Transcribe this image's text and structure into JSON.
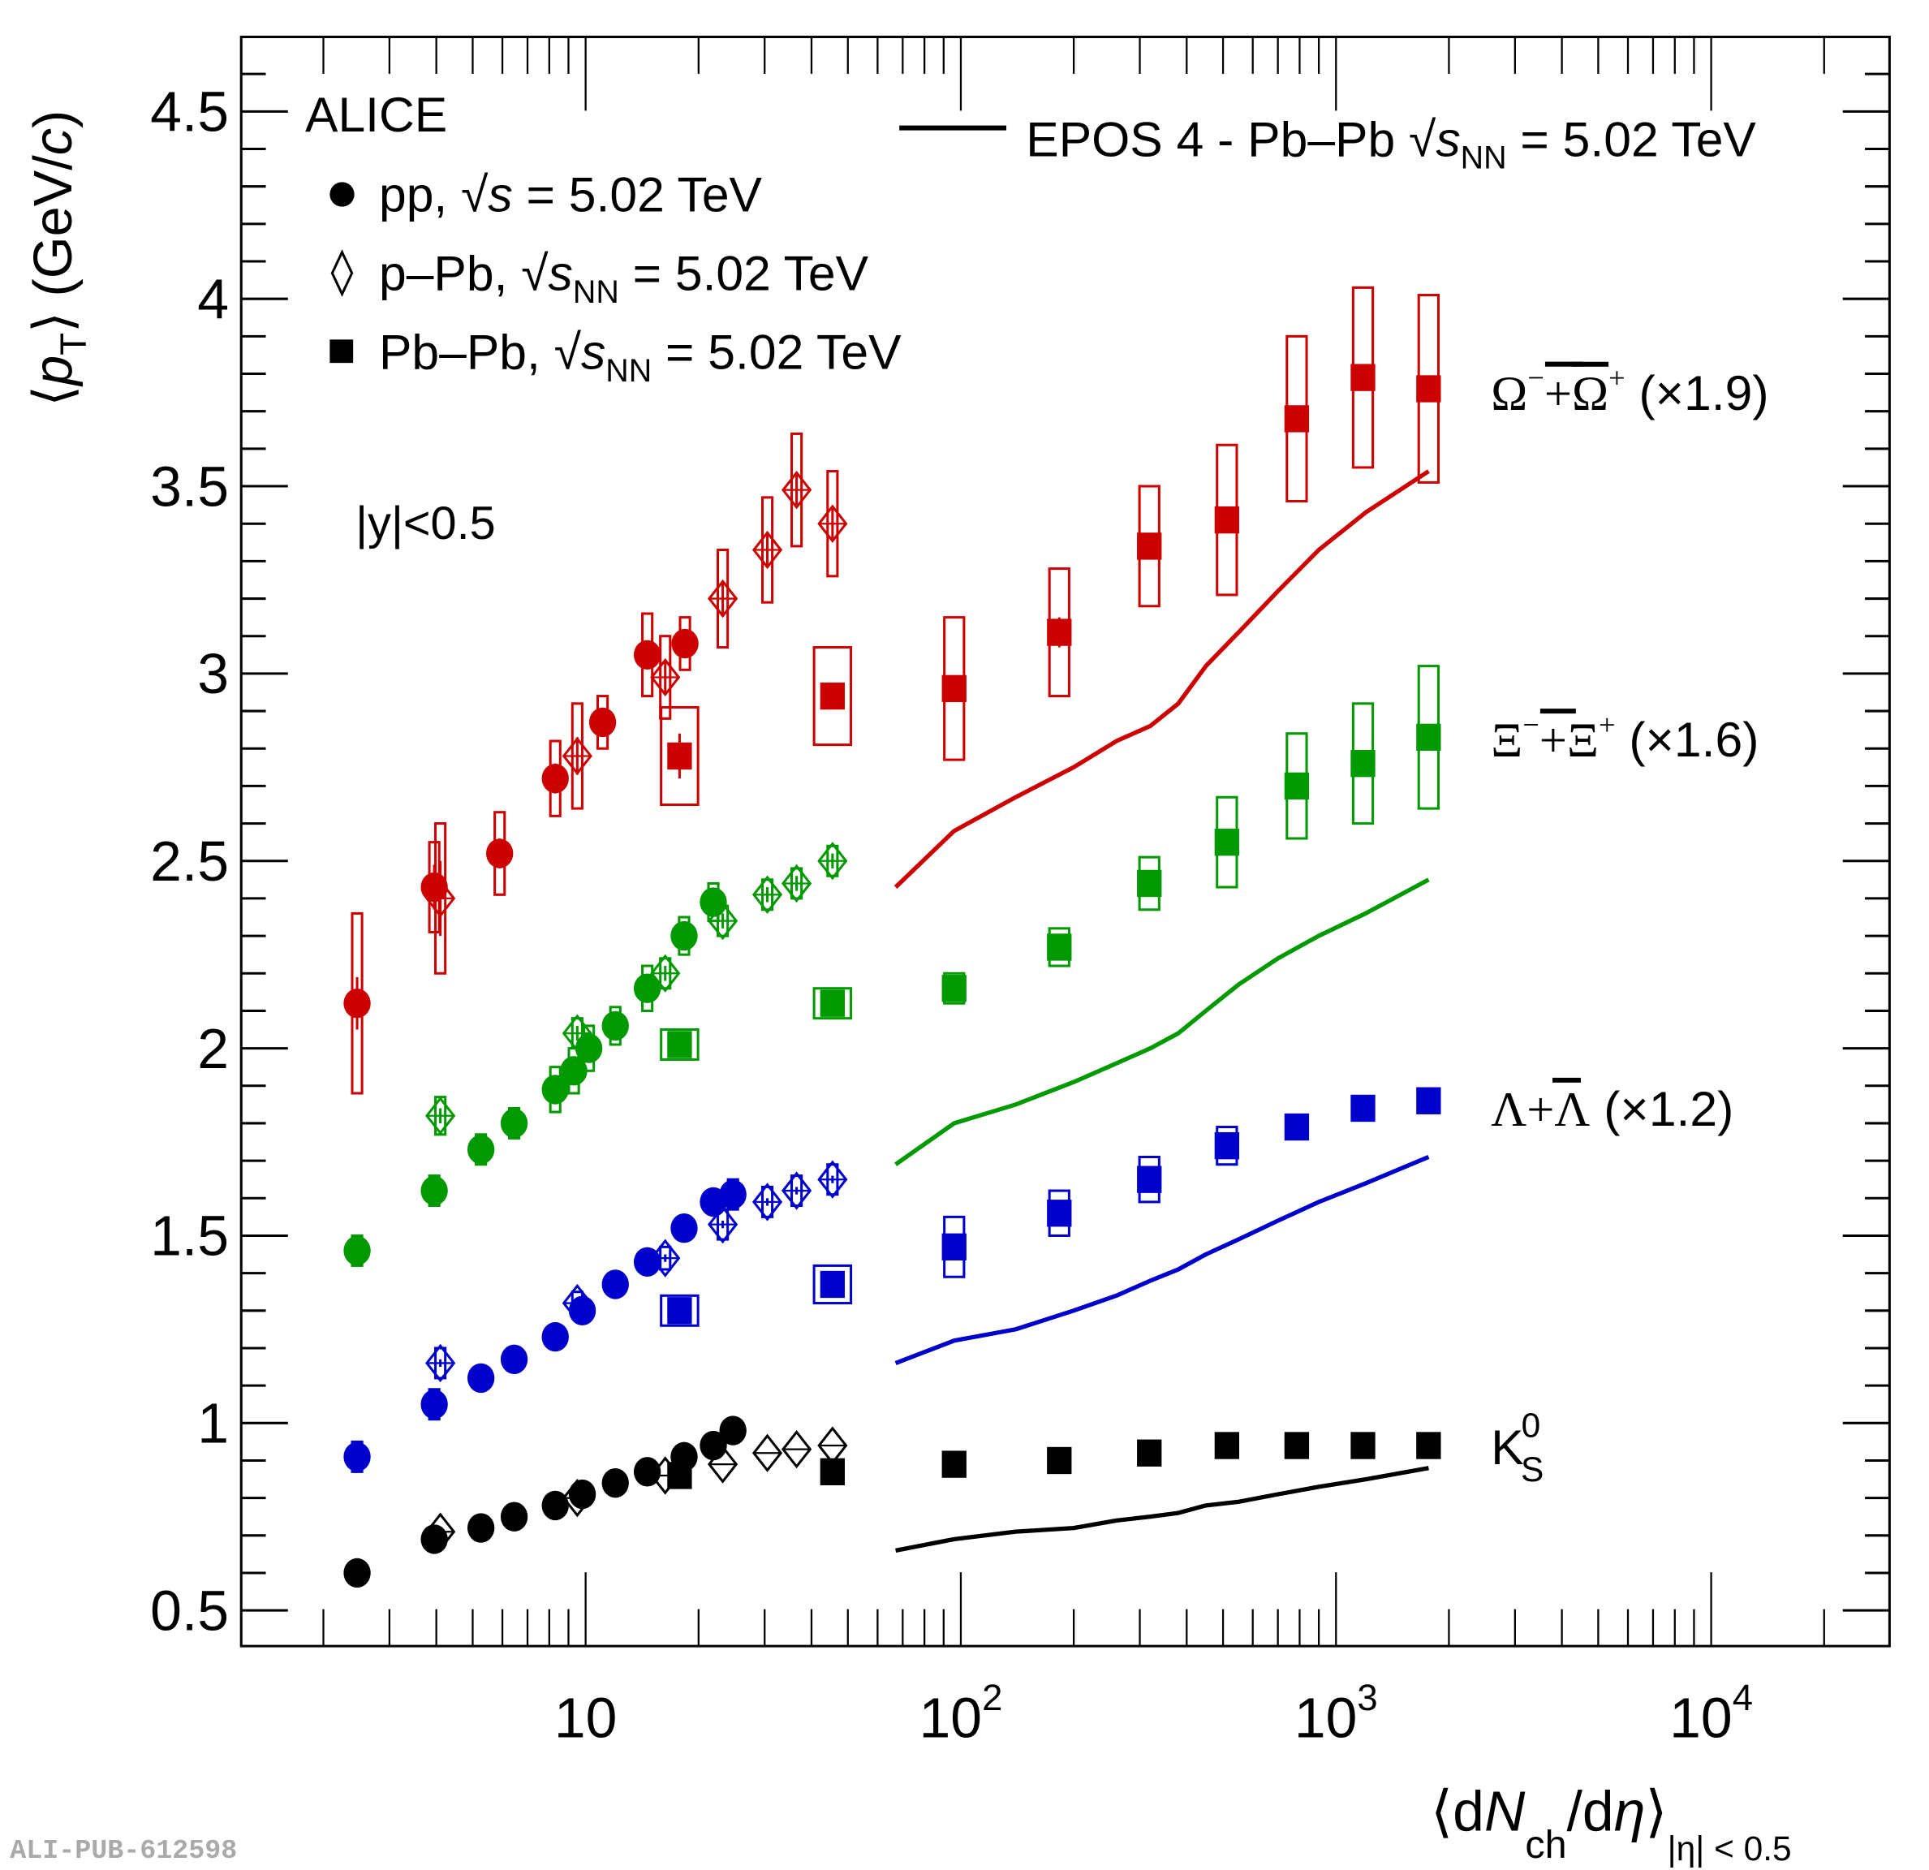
{
  "chart_data": {
    "type": "scatter",
    "experiment_label": "ALICE",
    "rapidity_label": "|y|<0.5",
    "xlabel": "⟨dN_ch/dη⟩_|η|<0.5",
    "xlabel_parts": {
      "main1": "⟨d",
      "N": "N",
      "sub_ch": "ch",
      "main2": "/d",
      "eta": "η",
      "close": "⟩",
      "sub_range": "|η| < 0.5"
    },
    "ylabel_parts": {
      "open": "⟨",
      "p": "p",
      "sub_T": "T",
      "close": "⟩ (GeV/",
      "c": "c",
      "end": ")"
    },
    "xscale": "log",
    "xlim": [
      1.5,
      25000
    ],
    "ylim": [
      0.4,
      4.7
    ],
    "x_ticks": [
      {
        "value": 10,
        "base": "10",
        "exp": ""
      },
      {
        "value": 100,
        "base": "10",
        "exp": "2"
      },
      {
        "value": 1000,
        "base": "10",
        "exp": "3"
      },
      {
        "value": 10000,
        "base": "10",
        "exp": "4"
      }
    ],
    "y_ticks": [
      0.5,
      1,
      1.5,
      2,
      2.5,
      3,
      3.5,
      4,
      4.5
    ],
    "y_tick_labels": [
      "0.5",
      "1",
      "1.5",
      "2",
      "2.5",
      "3",
      "3.5",
      "4",
      "4.5"
    ],
    "watermark": "ALI-PUB-612598",
    "legend": {
      "placement": "top-left",
      "entries": [
        {
          "marker": "circle",
          "label_main": "pp, ",
          "sqrt": "√",
          "s": "s",
          "sub": "",
          "rest": " = 5.02 TeV"
        },
        {
          "marker": "open-diamond",
          "label_main": "p–Pb, ",
          "sqrt": "√",
          "s": "s",
          "sub": "NN",
          "rest": " = 5.02 TeV"
        },
        {
          "marker": "square",
          "label_main": "Pb–Pb, ",
          "sqrt": "√",
          "s": "s",
          "sub": "NN",
          "rest": " = 5.02 TeV"
        }
      ],
      "model": {
        "marker": "line",
        "label_main": "EPOS 4 - Pb–Pb ",
        "sqrt": "√",
        "s": "s",
        "sub": "NN",
        "rest": " = 5.02 TeV",
        "placement": "top-right"
      }
    },
    "species_labels": [
      {
        "id": "omega",
        "text_a": "Ω",
        "sup_a": "−",
        "plus": "+",
        "text_b": "Ω",
        "sup_b": "+",
        "scale": " (×1.9)",
        "anchor_y": 3.75
      },
      {
        "id": "xi",
        "text_a": "Ξ",
        "sup_a": "−",
        "plus": "+",
        "text_b": "Ξ",
        "sup_b": "+",
        "scale": " (×1.6)",
        "anchor_y": 2.83
      },
      {
        "id": "lambda",
        "text_a": "Λ",
        "sup_a": "",
        "plus": "+",
        "text_b": "Λ",
        "sup_b": "",
        "scale": " (×1.2)",
        "anchor_y": 1.85
      },
      {
        "id": "k0s",
        "text_a": "K",
        "sup_a": "0",
        "sub_a": "S",
        "plus": "",
        "text_b": "",
        "sup_b": "",
        "scale": "",
        "anchor_y": 0.92
      }
    ],
    "series": [
      {
        "name": "Omega pp",
        "species": "omega",
        "system": "pp",
        "marker": "circle",
        "color": "#cc0000",
        "points": [
          {
            "x": 2.46,
            "y": 2.12,
            "stat": 0.07,
            "sys": 0.24
          },
          {
            "x": 3.95,
            "y": 2.43,
            "stat": 0.06,
            "sys": 0.12
          },
          {
            "x": 5.9,
            "y": 2.52,
            "stat": 0.04,
            "sys": 0.11
          },
          {
            "x": 8.3,
            "y": 2.72,
            "stat": 0.04,
            "sys": 0.1
          },
          {
            "x": 11.1,
            "y": 2.87,
            "stat": 0.03,
            "sys": 0.07
          },
          {
            "x": 14.6,
            "y": 3.05,
            "stat": 0.03,
            "sys": 0.11
          },
          {
            "x": 18.4,
            "y": 3.08,
            "stat": 0.03,
            "sys": 0.07
          }
        ]
      },
      {
        "name": "Omega p-Pb",
        "species": "omega",
        "system": "p-Pb",
        "marker": "open-diamond",
        "color": "#cc0000",
        "points": [
          {
            "x": 4.1,
            "y": 2.4,
            "stat": 0.1,
            "sys": 0.2
          },
          {
            "x": 9.5,
            "y": 2.78,
            "stat": 0.05,
            "sys": 0.14
          },
          {
            "x": 16.3,
            "y": 2.99,
            "stat": 0.04,
            "sys": 0.11
          },
          {
            "x": 23.2,
            "y": 3.2,
            "stat": 0.04,
            "sys": 0.13
          },
          {
            "x": 30.5,
            "y": 3.33,
            "stat": 0.04,
            "sys": 0.14
          },
          {
            "x": 36.5,
            "y": 3.49,
            "stat": 0.04,
            "sys": 0.15
          },
          {
            "x": 45.5,
            "y": 3.4,
            "stat": 0.04,
            "sys": 0.14
          }
        ]
      },
      {
        "name": "Omega Pb-Pb",
        "species": "omega",
        "system": "Pb-Pb",
        "marker": "square",
        "color": "#cc0000",
        "points": [
          {
            "x": 17.8,
            "y": 2.78,
            "stat": 0.06,
            "sys": 0.13,
            "wide": true
          },
          {
            "x": 45.5,
            "y": 2.94,
            "stat": 0.02,
            "sys": 0.13,
            "wide": true
          },
          {
            "x": 96,
            "y": 2.96,
            "stat": 0.02,
            "sys": 0.19
          },
          {
            "x": 183,
            "y": 3.11,
            "stat": 0.04,
            "sys": 0.17
          },
          {
            "x": 318,
            "y": 3.34,
            "stat": 0.02,
            "sys": 0.16
          },
          {
            "x": 512,
            "y": 3.41,
            "stat": 0.03,
            "sys": 0.2
          },
          {
            "x": 786,
            "y": 3.68,
            "stat": 0.03,
            "sys": 0.22
          },
          {
            "x": 1180,
            "y": 3.79,
            "stat": 0.03,
            "sys": 0.24
          },
          {
            "x": 1765,
            "y": 3.76,
            "stat": 0.03,
            "sys": 0.25
          }
        ]
      },
      {
        "name": "Xi pp",
        "species": "xi",
        "system": "pp",
        "marker": "circle",
        "color": "#009900",
        "points": [
          {
            "x": 2.46,
            "y": 1.46,
            "stat": 0.01,
            "sys": 0.04
          },
          {
            "x": 3.95,
            "y": 1.62,
            "stat": 0.01,
            "sys": 0.04
          },
          {
            "x": 5.26,
            "y": 1.73,
            "stat": 0.01,
            "sys": 0.04
          },
          {
            "x": 6.45,
            "y": 1.8,
            "stat": 0.01,
            "sys": 0.04
          },
          {
            "x": 8.3,
            "y": 1.89,
            "stat": 0.01,
            "sys": 0.06
          },
          {
            "x": 9.3,
            "y": 1.94,
            "stat": 0.01,
            "sys": 0.06
          },
          {
            "x": 10.2,
            "y": 2.0,
            "stat": 0.01,
            "sys": 0.06
          },
          {
            "x": 12.0,
            "y": 2.06,
            "stat": 0.01,
            "sys": 0.05
          },
          {
            "x": 14.6,
            "y": 2.16,
            "stat": 0.01,
            "sys": 0.06
          },
          {
            "x": 18.3,
            "y": 2.3,
            "stat": 0.01,
            "sys": 0.05
          },
          {
            "x": 21.9,
            "y": 2.39,
            "stat": 0.01,
            "sys": 0.05
          }
        ]
      },
      {
        "name": "Xi p-Pb",
        "species": "xi",
        "system": "p-Pb",
        "marker": "open-diamond",
        "color": "#009900",
        "points": [
          {
            "x": 4.1,
            "y": 1.82,
            "stat": 0.02,
            "sys": 0.05
          },
          {
            "x": 9.5,
            "y": 2.04,
            "stat": 0.02,
            "sys": 0.04
          },
          {
            "x": 16.3,
            "y": 2.2,
            "stat": 0.02,
            "sys": 0.04
          },
          {
            "x": 23.2,
            "y": 2.34,
            "stat": 0.02,
            "sys": 0.04
          },
          {
            "x": 30.5,
            "y": 2.41,
            "stat": 0.02,
            "sys": 0.04
          },
          {
            "x": 36.5,
            "y": 2.44,
            "stat": 0.02,
            "sys": 0.04
          },
          {
            "x": 45.5,
            "y": 2.5,
            "stat": 0.02,
            "sys": 0.04
          }
        ]
      },
      {
        "name": "Xi Pb-Pb",
        "species": "xi",
        "system": "Pb-Pb",
        "marker": "square",
        "color": "#009900",
        "points": [
          {
            "x": 17.8,
            "y": 2.01,
            "stat": 0.01,
            "sys": 0.04,
            "wide": true
          },
          {
            "x": 45.5,
            "y": 2.12,
            "stat": 0.01,
            "sys": 0.04,
            "wide": true
          },
          {
            "x": 96,
            "y": 2.16,
            "stat": 0.01,
            "sys": 0.04
          },
          {
            "x": 183,
            "y": 2.27,
            "stat": 0.01,
            "sys": 0.05
          },
          {
            "x": 318,
            "y": 2.44,
            "stat": 0.01,
            "sys": 0.07
          },
          {
            "x": 512,
            "y": 2.55,
            "stat": 0.01,
            "sys": 0.12
          },
          {
            "x": 786,
            "y": 2.7,
            "stat": 0.01,
            "sys": 0.14
          },
          {
            "x": 1180,
            "y": 2.76,
            "stat": 0.01,
            "sys": 0.16
          },
          {
            "x": 1765,
            "y": 2.83,
            "stat": 0.01,
            "sys": 0.19
          }
        ]
      },
      {
        "name": "Lambda pp",
        "species": "lambda",
        "system": "pp",
        "marker": "circle",
        "color": "#0000cc",
        "points": [
          {
            "x": 2.46,
            "y": 0.91,
            "stat": 0.005,
            "sys": 0.04
          },
          {
            "x": 3.95,
            "y": 1.05,
            "stat": 0.005,
            "sys": 0.04
          },
          {
            "x": 5.26,
            "y": 1.12,
            "stat": 0.005,
            "sys": 0.03
          },
          {
            "x": 6.45,
            "y": 1.17,
            "stat": 0.005,
            "sys": 0.03
          },
          {
            "x": 8.3,
            "y": 1.23,
            "stat": 0.005,
            "sys": 0.03
          },
          {
            "x": 9.8,
            "y": 1.3,
            "stat": 0.005,
            "sys": 0.03
          },
          {
            "x": 12.0,
            "y": 1.37,
            "stat": 0.005,
            "sys": 0.03
          },
          {
            "x": 14.6,
            "y": 1.43,
            "stat": 0.005,
            "sys": 0.03
          },
          {
            "x": 18.3,
            "y": 1.52,
            "stat": 0.005,
            "sys": 0.03
          },
          {
            "x": 21.9,
            "y": 1.59,
            "stat": 0.005,
            "sys": 0.03
          },
          {
            "x": 24.7,
            "y": 1.61,
            "stat": 0.005,
            "sys": 0.04
          }
        ]
      },
      {
        "name": "Lambda p-Pb",
        "species": "lambda",
        "system": "p-Pb",
        "marker": "open-diamond",
        "color": "#0000cc",
        "points": [
          {
            "x": 4.1,
            "y": 1.16,
            "stat": 0.01,
            "sys": 0.04
          },
          {
            "x": 9.5,
            "y": 1.32,
            "stat": 0.01,
            "sys": 0.03
          },
          {
            "x": 16.3,
            "y": 1.44,
            "stat": 0.01,
            "sys": 0.03
          },
          {
            "x": 23.2,
            "y": 1.53,
            "stat": 0.01,
            "sys": 0.04
          },
          {
            "x": 30.5,
            "y": 1.59,
            "stat": 0.01,
            "sys": 0.04
          },
          {
            "x": 36.5,
            "y": 1.62,
            "stat": 0.01,
            "sys": 0.04
          },
          {
            "x": 45.5,
            "y": 1.65,
            "stat": 0.01,
            "sys": 0.04
          }
        ]
      },
      {
        "name": "Lambda Pb-Pb",
        "species": "lambda",
        "system": "Pb-Pb",
        "marker": "square",
        "color": "#0000cc",
        "points": [
          {
            "x": 17.8,
            "y": 1.3,
            "stat": 0.005,
            "sys": 0.04,
            "wide": true
          },
          {
            "x": 45.5,
            "y": 1.37,
            "stat": 0.005,
            "sys": 0.05,
            "wide": true
          },
          {
            "x": 96,
            "y": 1.47,
            "stat": 0.005,
            "sys": 0.08
          },
          {
            "x": 183,
            "y": 1.56,
            "stat": 0.005,
            "sys": 0.06
          },
          {
            "x": 318,
            "y": 1.65,
            "stat": 0.005,
            "sys": 0.06
          },
          {
            "x": 512,
            "y": 1.74,
            "stat": 0.005,
            "sys": 0.05
          },
          {
            "x": 786,
            "y": 1.79,
            "stat": 0.005,
            "sys": 0.03
          },
          {
            "x": 1180,
            "y": 1.84,
            "stat": 0.005,
            "sys": 0.03
          },
          {
            "x": 1765,
            "y": 1.86,
            "stat": 0.005,
            "sys": 0.03
          }
        ]
      },
      {
        "name": "K0S pp",
        "species": "k0s",
        "system": "pp",
        "marker": "circle",
        "color": "#000000",
        "points": [
          {
            "x": 2.46,
            "y": 0.6
          },
          {
            "x": 3.95,
            "y": 0.69
          },
          {
            "x": 5.26,
            "y": 0.72
          },
          {
            "x": 6.45,
            "y": 0.75
          },
          {
            "x": 8.3,
            "y": 0.78
          },
          {
            "x": 9.8,
            "y": 0.81
          },
          {
            "x": 12.0,
            "y": 0.84
          },
          {
            "x": 14.6,
            "y": 0.87
          },
          {
            "x": 18.3,
            "y": 0.91
          },
          {
            "x": 21.9,
            "y": 0.94
          },
          {
            "x": 24.7,
            "y": 0.98
          }
        ]
      },
      {
        "name": "K0S p-Pb",
        "species": "k0s",
        "system": "p-Pb",
        "marker": "open-diamond",
        "color": "#000000",
        "points": [
          {
            "x": 4.1,
            "y": 0.71
          },
          {
            "x": 9.5,
            "y": 0.8
          },
          {
            "x": 16.3,
            "y": 0.86
          },
          {
            "x": 23.2,
            "y": 0.89
          },
          {
            "x": 30.5,
            "y": 0.92
          },
          {
            "x": 36.5,
            "y": 0.93
          },
          {
            "x": 45.5,
            "y": 0.94
          }
        ]
      },
      {
        "name": "K0S Pb-Pb",
        "species": "k0s",
        "system": "Pb-Pb",
        "marker": "square",
        "color": "#000000",
        "points": [
          {
            "x": 17.8,
            "y": 0.86,
            "wide": true
          },
          {
            "x": 45.5,
            "y": 0.87,
            "wide": true
          },
          {
            "x": 96,
            "y": 0.89
          },
          {
            "x": 183,
            "y": 0.9
          },
          {
            "x": 318,
            "y": 0.92
          },
          {
            "x": 512,
            "y": 0.94
          },
          {
            "x": 786,
            "y": 0.94
          },
          {
            "x": 1180,
            "y": 0.94
          },
          {
            "x": 1765,
            "y": 0.94
          }
        ]
      }
    ],
    "model_curves": [
      {
        "name": "EPOS 4 Omega",
        "species": "omega",
        "color": "#cc0000",
        "x": [
          67,
          96,
          140,
          200,
          260,
          320,
          380,
          450,
          550,
          700,
          900,
          1200,
          1765
        ],
        "y": [
          2.43,
          2.58,
          2.67,
          2.75,
          2.82,
          2.86,
          2.92,
          3.02,
          3.11,
          3.22,
          3.33,
          3.43,
          3.54
        ]
      },
      {
        "name": "EPOS 4 Xi",
        "species": "xi",
        "color": "#009900",
        "x": [
          67,
          96,
          140,
          200,
          260,
          320,
          380,
          450,
          550,
          700,
          900,
          1200,
          1765
        ],
        "y": [
          1.69,
          1.8,
          1.85,
          1.91,
          1.96,
          2.0,
          2.04,
          2.1,
          2.17,
          2.24,
          2.3,
          2.36,
          2.45
        ]
      },
      {
        "name": "EPOS 4 Lambda",
        "species": "lambda",
        "color": "#0000cc",
        "x": [
          67,
          96,
          140,
          200,
          260,
          320,
          380,
          450,
          550,
          700,
          900,
          1200,
          1765
        ],
        "y": [
          1.16,
          1.22,
          1.25,
          1.3,
          1.34,
          1.38,
          1.41,
          1.45,
          1.49,
          1.54,
          1.59,
          1.64,
          1.71
        ]
      },
      {
        "name": "EPOS 4 K0S",
        "species": "k0s",
        "color": "#000000",
        "x": [
          67,
          96,
          140,
          200,
          260,
          320,
          380,
          450,
          550,
          700,
          900,
          1200,
          1765
        ],
        "y": [
          0.66,
          0.69,
          0.71,
          0.72,
          0.74,
          0.75,
          0.76,
          0.78,
          0.79,
          0.81,
          0.83,
          0.85,
          0.88
        ]
      }
    ]
  }
}
